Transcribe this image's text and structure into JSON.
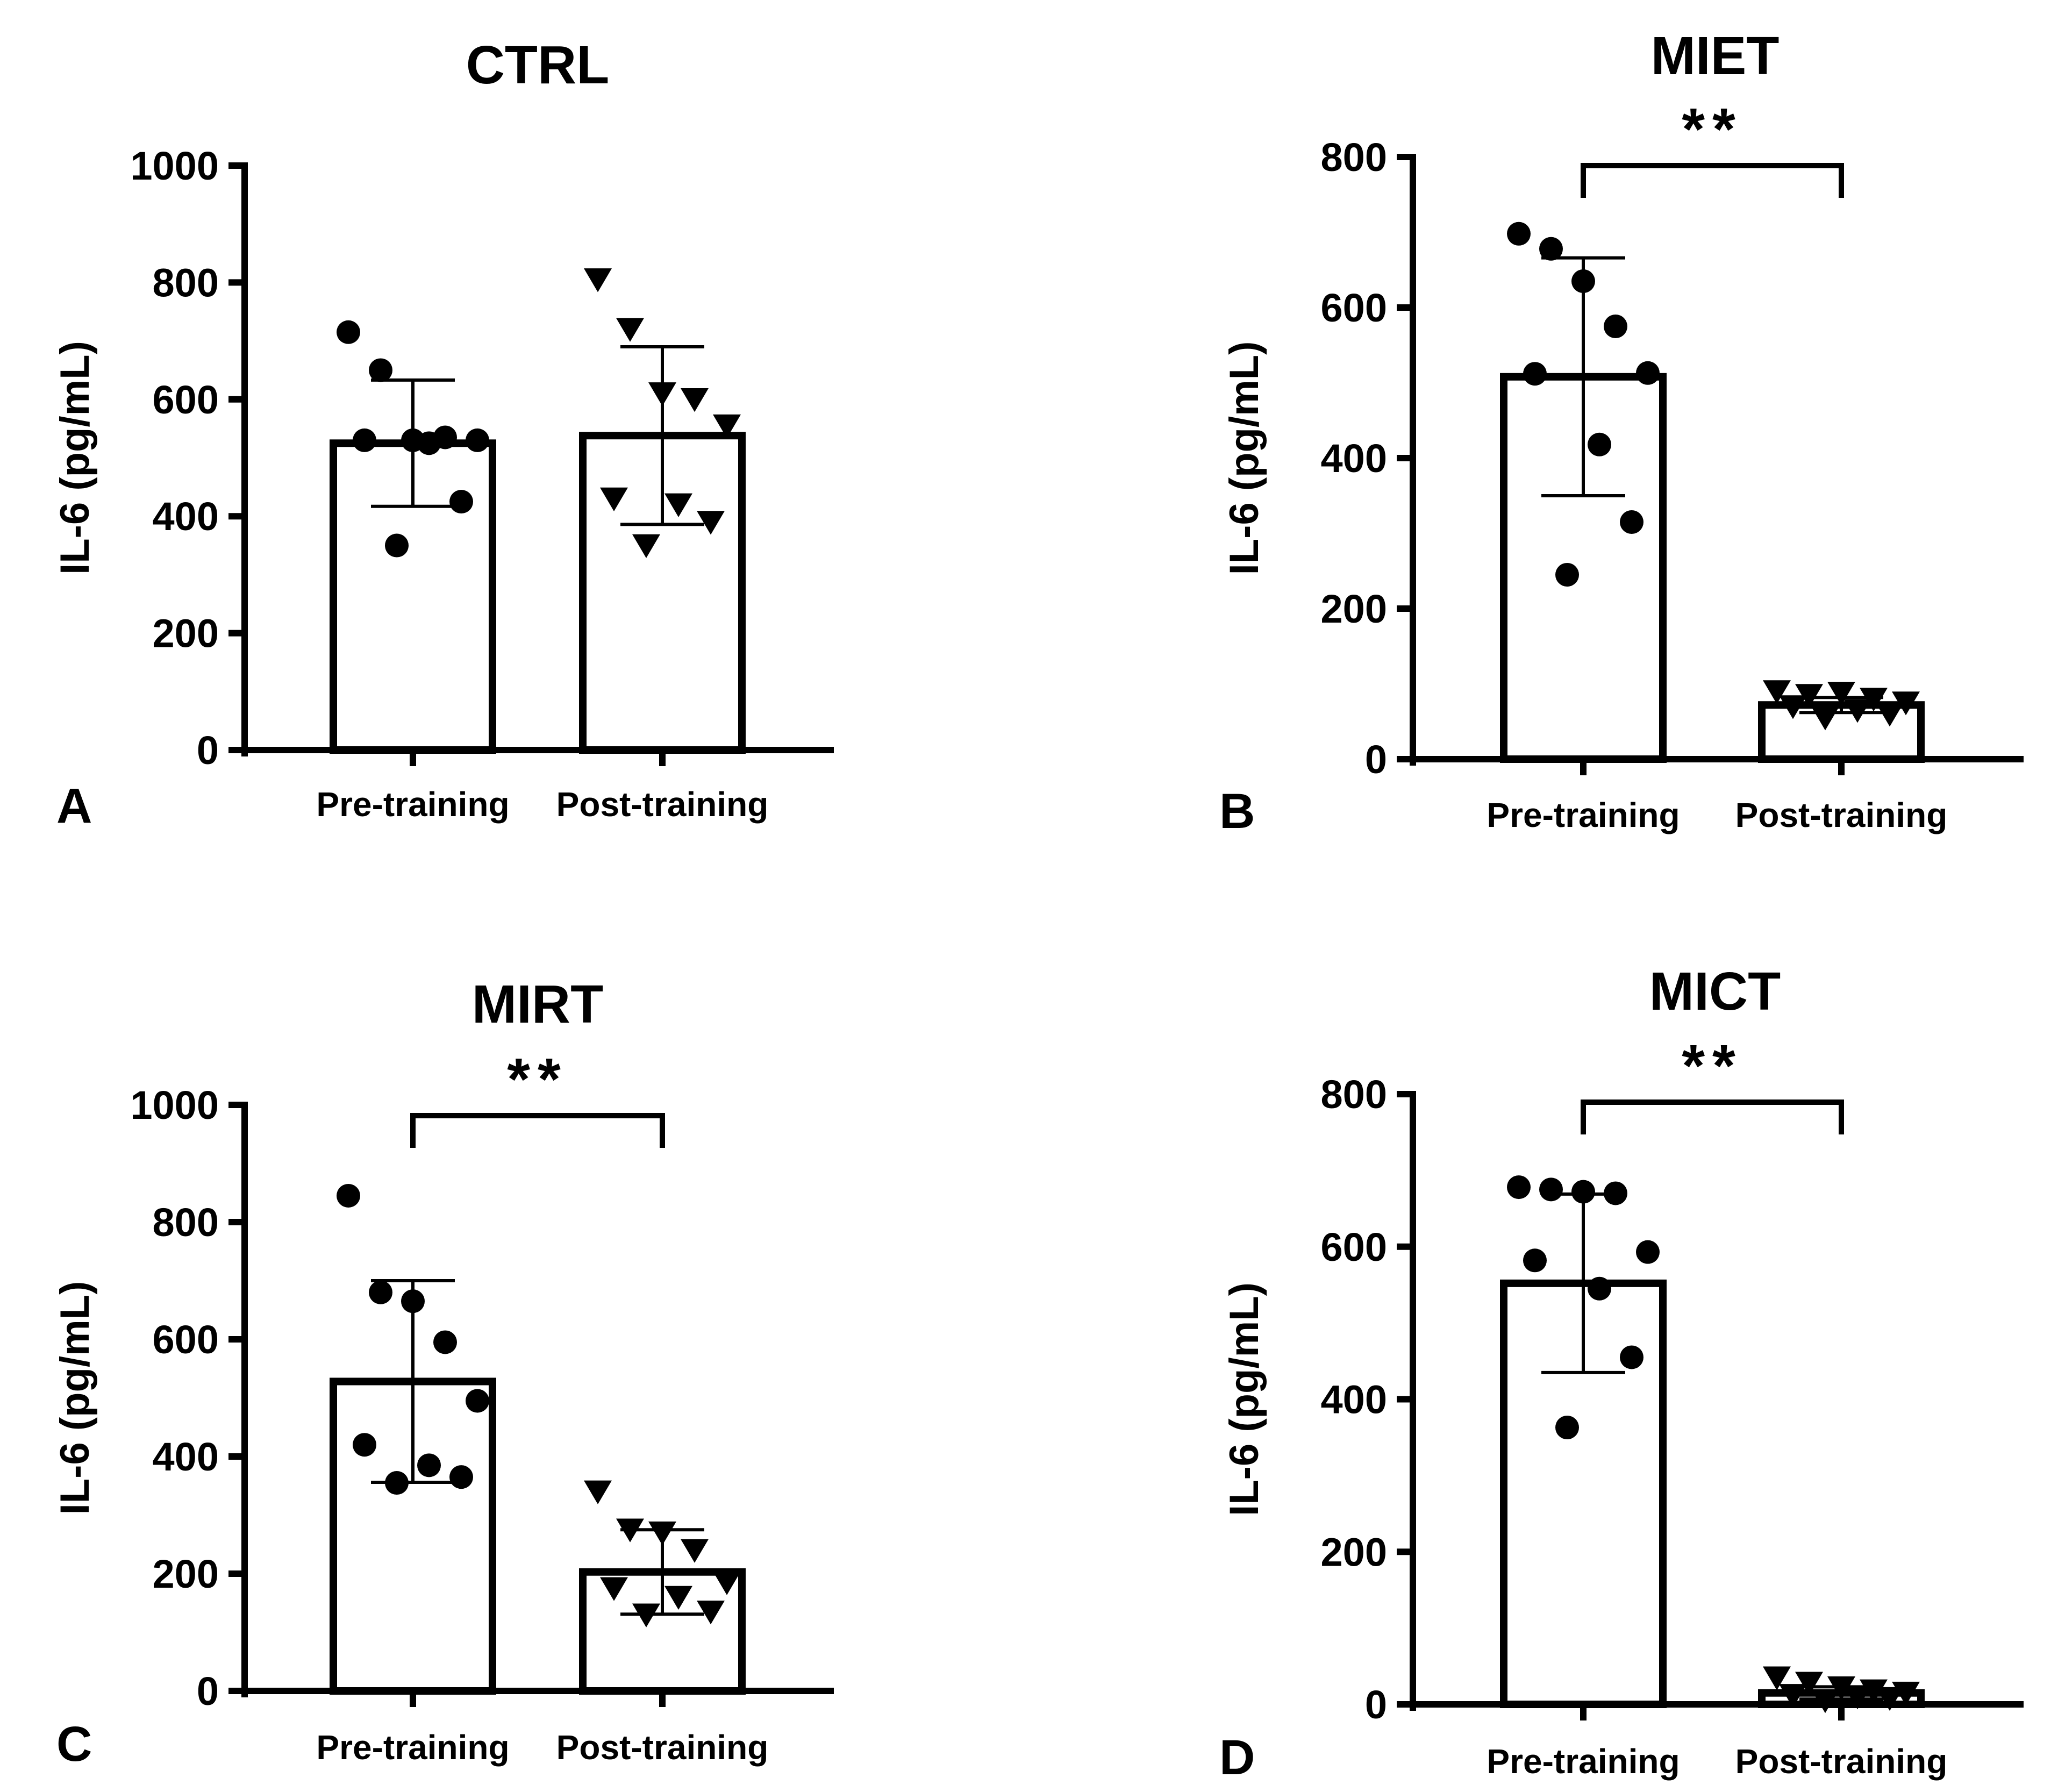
{
  "figure": {
    "background": "#ffffff",
    "ink": "#000000"
  },
  "chart_data": [
    {
      "type": "bar",
      "panel": "A",
      "title": "CTRL",
      "xlabel": "",
      "ylabel": "IL-6 (pg/mL)",
      "ylim": [
        0,
        1000
      ],
      "yticks": [
        "0",
        "200",
        "400",
        "600",
        "800",
        "1000"
      ],
      "categories": [
        "Pre-training",
        "Post-training"
      ],
      "means": [
        525,
        538
      ],
      "sd": [
        108,
        152
      ],
      "points": [
        [
          715,
          650,
          530,
          535,
          530,
          530,
          525,
          425,
          350
        ],
        [
          805,
          720,
          610,
          600,
          555,
          430,
          420,
          390,
          350
        ]
      ],
      "markers": [
        "circle",
        "triangle-down"
      ],
      "significance": ""
    },
    {
      "type": "bar",
      "panel": "B",
      "title": "MIET",
      "xlabel": "",
      "ylabel": "IL-6 (pg/mL)",
      "ylim": [
        0,
        800
      ],
      "yticks": [
        "0",
        "200",
        "400",
        "600",
        "800"
      ],
      "categories": [
        "Pre-training",
        "Post-training"
      ],
      "means": [
        508,
        72
      ],
      "sd": [
        158,
        10
      ],
      "points": [
        [
          698,
          678,
          635,
          575,
          513,
          512,
          418,
          315,
          245
        ],
        [
          90,
          85,
          88,
          80,
          75,
          70,
          65,
          60,
          55
        ]
      ],
      "markers": [
        "circle",
        "triangle-down"
      ],
      "significance": "**"
    },
    {
      "type": "bar",
      "panel": "C",
      "title": "MIRT",
      "xlabel": "",
      "ylabel": "IL-6 (pg/mL)",
      "ylim": [
        0,
        1000
      ],
      "yticks": [
        "0",
        "200",
        "400",
        "600",
        "800",
        "1000"
      ],
      "categories": [
        "Pre-training",
        "Post-training"
      ],
      "means": [
        528,
        203
      ],
      "sd": [
        172,
        72
      ],
      "points": [
        [
          845,
          680,
          665,
          595,
          495,
          420,
          385,
          365,
          355
        ],
        [
          340,
          275,
          270,
          240,
          185,
          175,
          160,
          135,
          130
        ]
      ],
      "markers": [
        "circle",
        "triangle-down"
      ],
      "significance": "**"
    },
    {
      "type": "bar",
      "panel": "D",
      "title": "MICT",
      "xlabel": "",
      "ylabel": "IL-6 (pg/mL)",
      "ylim": [
        0,
        800
      ],
      "yticks": [
        "0",
        "200",
        "400",
        "600",
        "800"
      ],
      "categories": [
        "Pre-training",
        "Post-training"
      ],
      "means": [
        552,
        15
      ],
      "sd": [
        117,
        8
      ],
      "points": [
        [
          678,
          675,
          672,
          670,
          593,
          582,
          545,
          455,
          363
        ],
        [
          35,
          28,
          22,
          18,
          15,
          12,
          10,
          8,
          5
        ]
      ],
      "markers": [
        "circle",
        "triangle-down"
      ],
      "significance": "**"
    }
  ]
}
